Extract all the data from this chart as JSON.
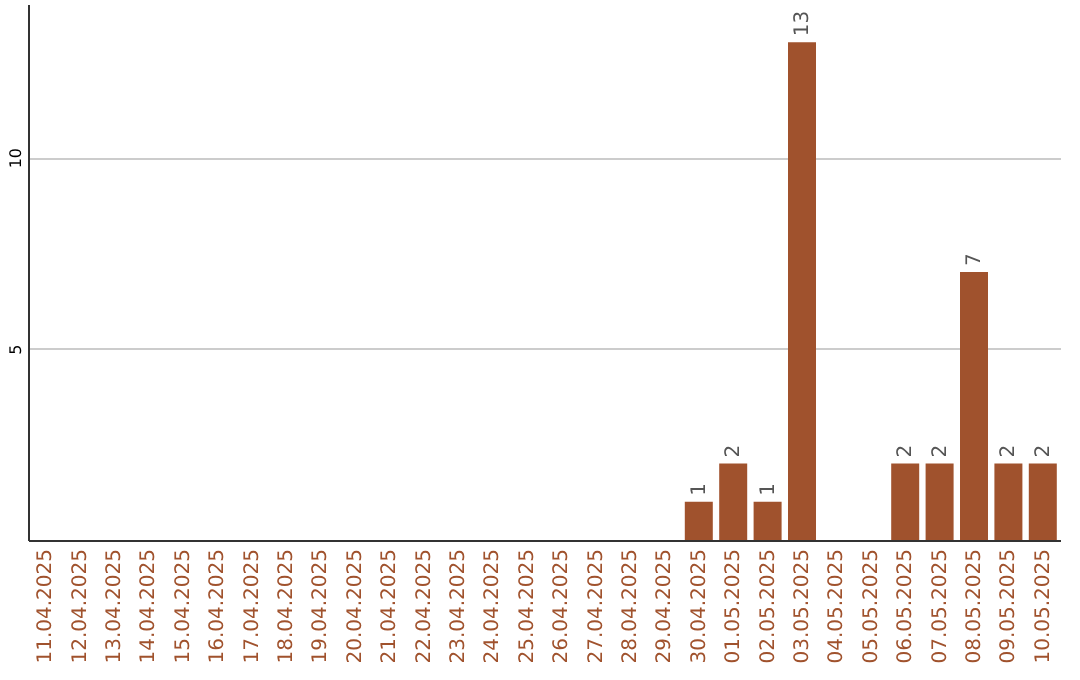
{
  "chart_data": {
    "type": "bar",
    "categories": [
      "11.04.2025",
      "12.04.2025",
      "13.04.2025",
      "14.04.2025",
      "15.04.2025",
      "16.04.2025",
      "17.04.2025",
      "18.04.2025",
      "19.04.2025",
      "20.04.2025",
      "21.04.2025",
      "22.04.2025",
      "23.04.2025",
      "24.04.2025",
      "25.04.2025",
      "26.04.2025",
      "27.04.2025",
      "28.04.2025",
      "29.04.2025",
      "30.04.2025",
      "01.05.2025",
      "02.05.2025",
      "03.05.2025",
      "04.05.2025",
      "05.05.2025",
      "06.05.2025",
      "07.05.2025",
      "08.05.2025",
      "09.05.2025",
      "10.05.2025"
    ],
    "values": [
      0,
      0,
      0,
      0,
      0,
      0,
      0,
      0,
      0,
      0,
      0,
      0,
      0,
      0,
      0,
      0,
      0,
      0,
      0,
      1,
      2,
      1,
      13,
      0,
      0,
      2,
      2,
      7,
      2,
      2
    ],
    "value_labels": [
      null,
      null,
      null,
      null,
      null,
      null,
      null,
      null,
      null,
      null,
      null,
      null,
      null,
      null,
      null,
      null,
      null,
      null,
      null,
      "1",
      "2",
      "1",
      "13",
      null,
      null,
      "2",
      "2",
      "7",
      "2",
      "2"
    ],
    "color": "#a0522d",
    "ylim": [
      0,
      14
    ],
    "yticks": [
      5,
      10
    ],
    "grid": "y"
  }
}
